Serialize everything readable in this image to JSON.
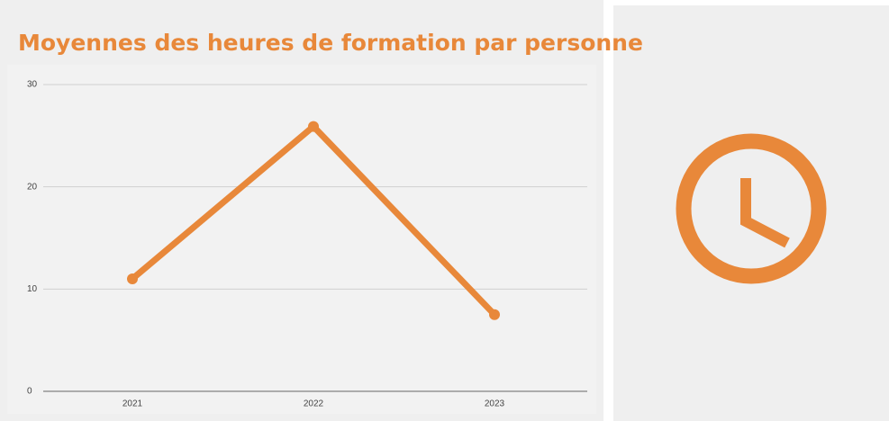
{
  "chart_data": {
    "type": "line",
    "title": "Moyennes des heures de formation par personne",
    "categories": [
      "2021",
      "2022",
      "2023"
    ],
    "series": [
      {
        "name": "Heures",
        "color": "#e8883a",
        "values": [
          11,
          25.9,
          7.5
        ]
      }
    ],
    "ylim": [
      0,
      30
    ],
    "yticks": [
      0,
      10,
      20,
      30
    ],
    "grid": true
  }
}
